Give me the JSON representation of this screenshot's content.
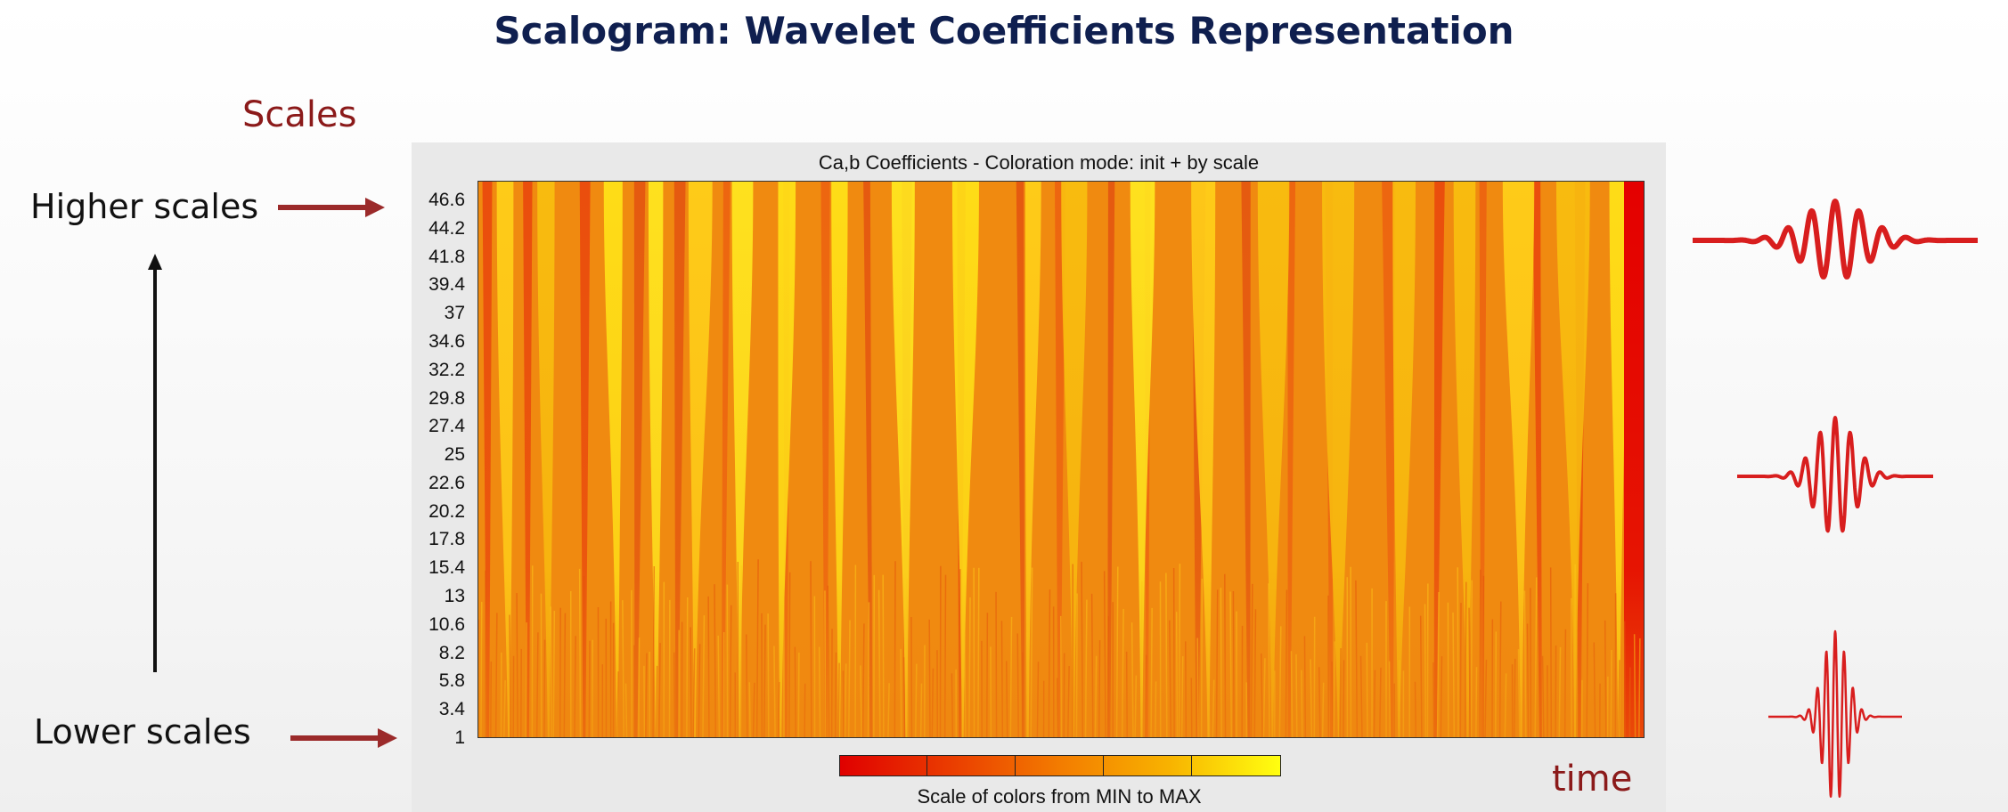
{
  "slide": {
    "title": "Scalogram: Wavelet Coefficients Representation",
    "scales_label": "Scales",
    "higher_label": "Higher scales",
    "lower_label": "Lower scales",
    "time_label": "time",
    "accent_color": "#8b1a1a",
    "title_color": "#0f1f4f",
    "wavelet_color": "#d81e1e"
  },
  "chart_data": {
    "type": "heatmap",
    "title": "Ca,b Coefficients - Coloration mode: init + by scale",
    "ylabel": "",
    "xlabel": "",
    "y_ticks": [
      "46.6",
      "44.2",
      "41.8",
      "39.4",
      "37",
      "34.6",
      "32.2",
      "29.8",
      "27.4",
      "25",
      "22.6",
      "20.2",
      "17.8",
      "15.4",
      "13",
      "10.6",
      "8.2",
      "5.8",
      "3.4",
      "1"
    ],
    "ylim": [
      1,
      46.6
    ],
    "colormap": [
      "#e00000",
      "#f37c00",
      "#ffff10"
    ],
    "colorbar_label": "Scale of colors from MIN to MAX"
  }
}
